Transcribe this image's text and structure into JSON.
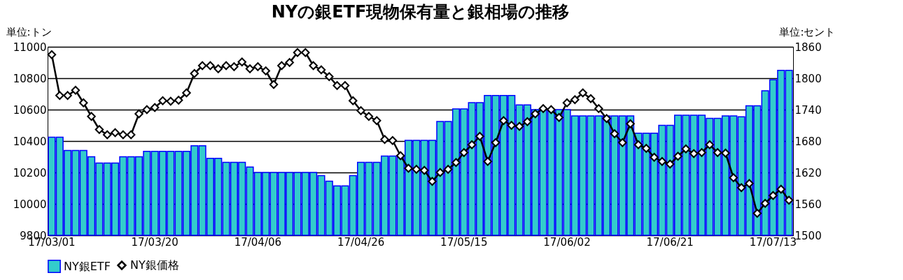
{
  "chart_data": {
    "type": "bar",
    "title": "NYの銀ETF現物保有量と銀相場の推移",
    "ylabel": "単位:トン",
    "y2label": "単位:セント",
    "categories": [
      "17/03/01",
      null,
      null,
      null,
      null,
      null,
      null,
      null,
      null,
      null,
      null,
      null,
      null,
      "17/03/20",
      null,
      null,
      null,
      null,
      null,
      null,
      null,
      null,
      null,
      null,
      null,
      null,
      "17/04/06",
      null,
      null,
      null,
      null,
      null,
      null,
      null,
      null,
      null,
      null,
      null,
      null,
      "17/04/26",
      null,
      null,
      null,
      null,
      null,
      null,
      null,
      null,
      null,
      null,
      null,
      null,
      "17/05/15",
      null,
      null,
      null,
      null,
      null,
      null,
      null,
      null,
      null,
      null,
      null,
      null,
      "17/06/02",
      null,
      null,
      null,
      null,
      null,
      null,
      null,
      null,
      null,
      null,
      null,
      null,
      "17/06/21",
      null,
      null,
      null,
      null,
      null,
      null,
      null,
      null,
      null,
      null,
      null,
      null,
      "17/07/13",
      null,
      null
    ],
    "series": [
      {
        "name": "NY銀ETF",
        "color": "#33cccc",
        "values": [
          10425,
          10425,
          10340,
          10340,
          10340,
          10300,
          10260,
          10260,
          10260,
          10300,
          10300,
          10300,
          10335,
          10335,
          10335,
          10335,
          10335,
          10335,
          10370,
          10370,
          10290,
          10290,
          10265,
          10265,
          10265,
          10235,
          10200,
          10200,
          10200,
          10200,
          10200,
          10200,
          10200,
          10200,
          10180,
          10145,
          10115,
          10115,
          10180,
          10265,
          10265,
          10265,
          10305,
          10305,
          10305,
          10405,
          10405,
          10405,
          10405,
          10525,
          10525,
          10605,
          10605,
          10645,
          10645,
          10690,
          10690,
          10690,
          10690,
          10630,
          10630,
          10600,
          10600,
          10600,
          10600,
          10600,
          10560,
          10560,
          10560,
          10560,
          10560,
          10560,
          10560,
          10560,
          10450,
          10450,
          10450,
          10500,
          10500,
          10565,
          10565,
          10565,
          10565,
          10545,
          10545,
          10560,
          10560,
          10555,
          10625,
          10625,
          10720,
          10790,
          10850,
          10850
        ]
      },
      {
        "name": "NY銀価格",
        "type": "line",
        "axis": "y2",
        "color": "#000000",
        "values": [
          1845,
          1767,
          1767,
          1777,
          1753,
          1727,
          1702,
          1692,
          1696,
          1692,
          1692,
          1732,
          1740,
          1744,
          1757,
          1756,
          1758,
          1772,
          1809,
          1824,
          1824,
          1818,
          1824,
          1822,
          1831,
          1818,
          1822,
          1814,
          1788,
          1824,
          1830,
          1849,
          1849,
          1824,
          1816,
          1803,
          1786,
          1786,
          1757,
          1738,
          1727,
          1719,
          1683,
          1681,
          1652,
          1628,
          1626,
          1624,
          1603,
          1620,
          1626,
          1639,
          1658,
          1673,
          1689,
          1641,
          1677,
          1719,
          1710,
          1708,
          1717,
          1732,
          1742,
          1740,
          1725,
          1753,
          1759,
          1772,
          1761,
          1742,
          1723,
          1694,
          1677,
          1713,
          1673,
          1666,
          1649,
          1641,
          1636,
          1651,
          1665,
          1656,
          1658,
          1673,
          1658,
          1657,
          1610,
          1591,
          1599,
          1542,
          1561,
          1576,
          1588,
          1567
        ]
      }
    ],
    "ylim": [
      9800,
      11000
    ],
    "yticks": [
      9800,
      10000,
      10200,
      10400,
      10600,
      10800,
      11000
    ],
    "y2lim": [
      1500,
      1860
    ],
    "y2ticks": [
      1500,
      1560,
      1620,
      1680,
      1740,
      1800,
      1860
    ],
    "grid": "y",
    "legend": "bottom",
    "marker": "diamond",
    "line_style": "solid"
  }
}
